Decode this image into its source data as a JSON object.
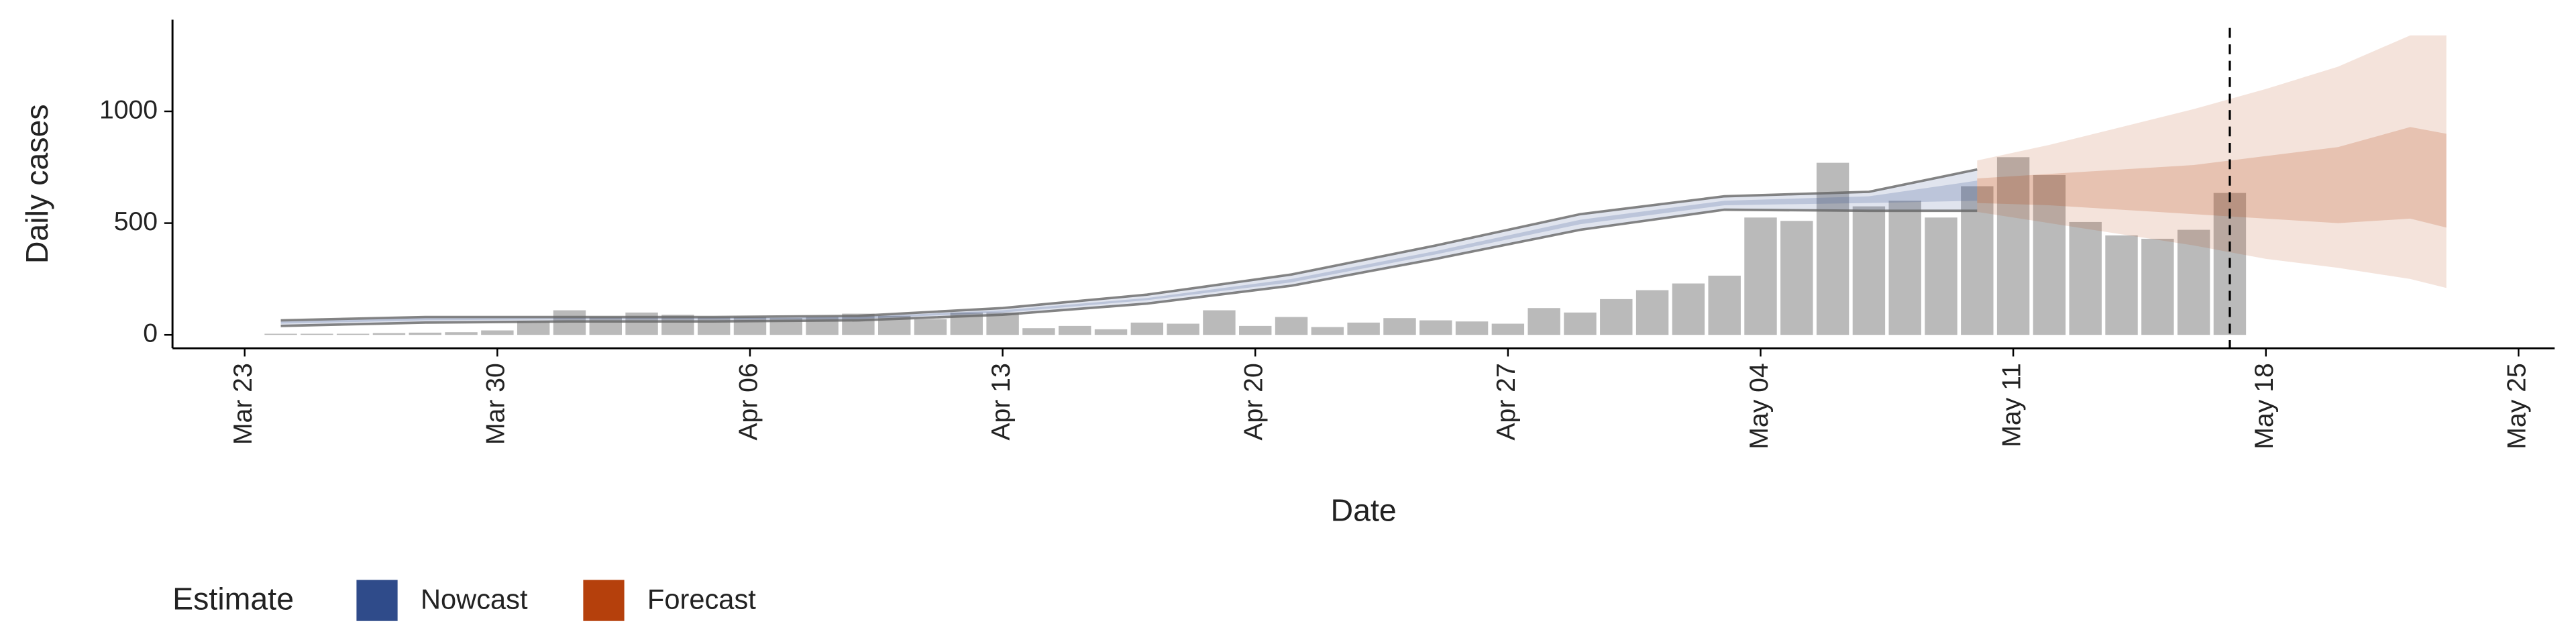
{
  "chart_data": {
    "type": "bar",
    "x_label": "Date",
    "y_label": "Daily cases",
    "legend_title": "Estimate",
    "x": [
      "Mar 24",
      "Mar 25",
      "Mar 26",
      "Mar 27",
      "Mar 28",
      "Mar 29",
      "Mar 30",
      "Mar 31",
      "Apr 1",
      "Apr 2",
      "Apr 3",
      "Apr 4",
      "Apr 5",
      "Apr 6",
      "Apr 7",
      "Apr 8",
      "Apr 9",
      "Apr 10",
      "Apr 11",
      "Apr 12",
      "Apr 13",
      "Apr 14",
      "Apr 15",
      "Apr 16",
      "Apr 17",
      "Apr 18",
      "Apr 19",
      "Apr 20",
      "Apr 21",
      "Apr 22",
      "Apr 23",
      "Apr 24",
      "Apr 25",
      "Apr 26",
      "Apr 27",
      "Apr 28",
      "Apr 29",
      "Apr 30",
      "May 1",
      "May 2",
      "May 3",
      "May 4",
      "May 5",
      "May 6",
      "May 7",
      "May 8",
      "May 9",
      "May 10",
      "May 11",
      "May 12",
      "May 13",
      "May 14",
      "May 15",
      "May 16",
      "May 17"
    ],
    "values": [
      5,
      5,
      5,
      8,
      10,
      12,
      20,
      60,
      110,
      80,
      100,
      90,
      80,
      80,
      75,
      80,
      95,
      85,
      70,
      100,
      100,
      30,
      40,
      25,
      55,
      50,
      110,
      40,
      80,
      35,
      55,
      75,
      65,
      60,
      50,
      120,
      100,
      160,
      200,
      230,
      265,
      525,
      510,
      770,
      575,
      600,
      525,
      665,
      795,
      715,
      505,
      445,
      430,
      470,
      635
    ],
    "color": "#b3b3b3",
    "xlim": [
      "Mar 21",
      "May 26"
    ],
    "xticks": [
      "Mar 23",
      "Mar 30",
      "Apr 06",
      "Apr 13",
      "Apr 20",
      "Apr 27",
      "May 04",
      "May 11",
      "May 18",
      "May 25"
    ],
    "ylim": [
      -60,
      1410
    ],
    "yticks": [
      0,
      500,
      1000
    ],
    "vline": "May 17",
    "series": [
      {
        "name": "Nowcast",
        "color": "#2f4b8a",
        "x": [
          "Mar 24",
          "Mar 28",
          "Apr 1",
          "Apr 5",
          "Apr 9",
          "Apr 13",
          "Apr 17",
          "Apr 21",
          "Apr 25",
          "Apr 29",
          "May 3",
          "May 7",
          "May 10"
        ],
        "upper_90": [
          65,
          80,
          80,
          80,
          85,
          120,
          180,
          270,
          400,
          540,
          620,
          640,
          740
        ],
        "lower_90": [
          40,
          55,
          60,
          60,
          65,
          90,
          140,
          220,
          340,
          470,
          560,
          555,
          555
        ],
        "upper_50": [
          60,
          75,
          75,
          75,
          80,
          110,
          165,
          250,
          375,
          515,
          600,
          620,
          690
        ],
        "lower_50": [
          50,
          65,
          70,
          70,
          72,
          100,
          155,
          235,
          360,
          495,
          580,
          590,
          600
        ]
      },
      {
        "name": "Forecast",
        "color": "#b5400c",
        "x": [
          "May 10",
          "May 12",
          "May 14",
          "May 16",
          "May 18",
          "May 20",
          "May 22",
          "May 23"
        ],
        "upper_90": [
          780,
          850,
          930,
          1010,
          1100,
          1200,
          1340,
          1340
        ],
        "lower_90": [
          550,
          500,
          450,
          400,
          340,
          300,
          250,
          210
        ],
        "upper_50": [
          700,
          720,
          740,
          760,
          800,
          840,
          930,
          900
        ],
        "lower_50": [
          590,
          580,
          560,
          540,
          520,
          500,
          520,
          480
        ]
      }
    ]
  }
}
